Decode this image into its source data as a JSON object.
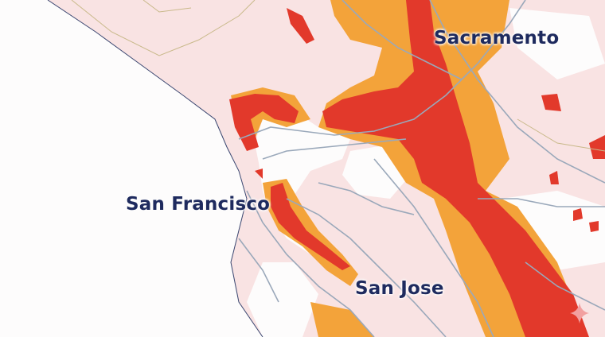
{
  "map": {
    "labels": {
      "sacramento": "Sacramento",
      "san_francisco": "San Francisco",
      "san_jose": "San Jose"
    },
    "colors": {
      "water": "#fdfcfc",
      "land_low": "#f9e3e3",
      "moderate": "#f3a33a",
      "high": "#e2392b",
      "roads": "#9aa8ba",
      "boundaries": "#c9b98a",
      "label_text": "#1e2a5e"
    },
    "watermark_icon": "sparkle-icon"
  }
}
